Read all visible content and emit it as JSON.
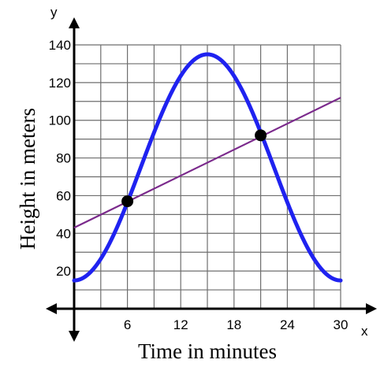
{
  "chart_data": {
    "type": "line",
    "xlabel": "Time in minutes",
    "ylabel": "Height in meters",
    "x_axis_letter": "x",
    "y_axis_letter": "y",
    "xlim": [
      0,
      30
    ],
    "ylim": [
      0,
      140
    ],
    "x_grid_step": 3,
    "y_grid_step": 10,
    "x_tick_values": [
      6,
      12,
      18,
      24,
      30
    ],
    "x_tick_labels": [
      "6",
      "12",
      "18",
      "24",
      "30"
    ],
    "y_tick_values": [
      20,
      40,
      60,
      80,
      100,
      120,
      140
    ],
    "y_tick_labels": [
      "20",
      "40",
      "60",
      "80",
      "100",
      "120",
      "140"
    ],
    "grid": true,
    "series": [
      {
        "kind": "cosine",
        "color": "#1f22f0",
        "midline": 75,
        "amplitude": 60,
        "period": 30,
        "max_at_x": 15,
        "x_start": 0,
        "x_end": 30
      },
      {
        "kind": "linear",
        "color": "#7b2a8c",
        "points": [
          [
            0,
            43
          ],
          [
            30,
            112
          ]
        ]
      }
    ],
    "points": [
      {
        "x": 6,
        "y": 57
      },
      {
        "x": 21,
        "y": 92
      }
    ]
  }
}
